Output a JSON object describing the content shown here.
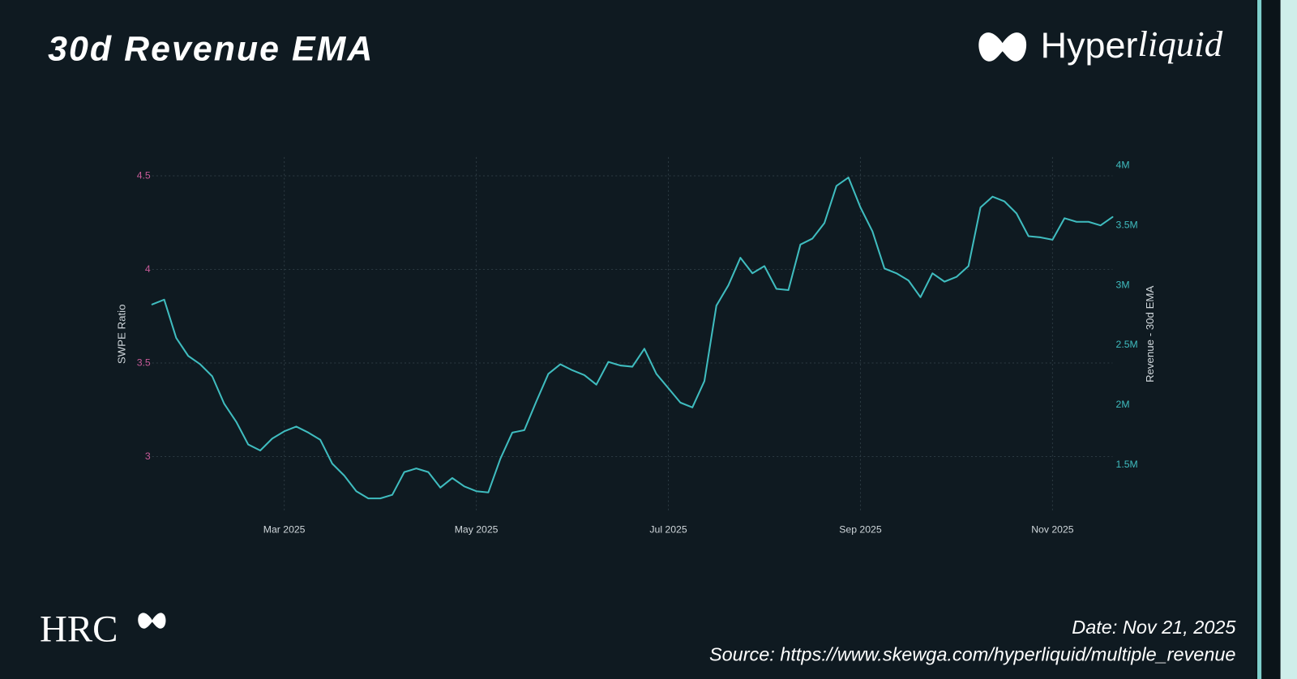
{
  "chart_data": {
    "type": "line",
    "title": "30d Revenue EMA",
    "ylabel": "SWPE Ratio",
    "y2label": "Revenue - 30d EMA",
    "categories": [
      null,
      null,
      null,
      null,
      null,
      null,
      null,
      null,
      null,
      null,
      null,
      "Mar 2025",
      null,
      null,
      null,
      null,
      null,
      null,
      null,
      null,
      null,
      null,
      null,
      null,
      null,
      null,
      null,
      "May 2025",
      null,
      null,
      null,
      null,
      null,
      null,
      null,
      null,
      null,
      null,
      null,
      null,
      null,
      null,
      null,
      "Jul 2025",
      null,
      null,
      null,
      null,
      null,
      null,
      null,
      null,
      null,
      null,
      null,
      null,
      null,
      null,
      null,
      "Sep 2025",
      null,
      null,
      null,
      null,
      null,
      null,
      null,
      null,
      null,
      null,
      null,
      null,
      null,
      null,
      null,
      "Nov 2025",
      null,
      null,
      null,
      null,
      null
    ],
    "series": [
      {
        "color": "#3fbcbf",
        "axis": "y2",
        "values": [
          2840000,
          2880000,
          2560000,
          2410000,
          2340000,
          2240000,
          2010000,
          1860000,
          1670000,
          1620000,
          1720000,
          1780000,
          1820000,
          1770000,
          1710000,
          1510000,
          1410000,
          1280000,
          1220000,
          1220000,
          1250000,
          1440000,
          1470000,
          1440000,
          1310000,
          1390000,
          1320000,
          1280000,
          1270000,
          1550000,
          1770000,
          1790000,
          2030000,
          2260000,
          2340000,
          2290000,
          2250000,
          2170000,
          2360000,
          2330000,
          2320000,
          2470000,
          2260000,
          2140000,
          2020000,
          1980000,
          2200000,
          2830000,
          3000000,
          3230000,
          3100000,
          3160000,
          2970000,
          2960000,
          3340000,
          3390000,
          3520000,
          3830000,
          3900000,
          3650000,
          3450000,
          3140000,
          3100000,
          3040000,
          2900000,
          3100000,
          3030000,
          3070000,
          3160000,
          3650000,
          3740000,
          3700000,
          3600000,
          3410000,
          3400000,
          3380000,
          3560000,
          3530000,
          3530000,
          3500000,
          3570000
        ]
      }
    ],
    "ylim": [
      2.7,
      4.6
    ],
    "yticks": [
      3,
      3.5,
      4,
      4.5
    ],
    "ytick_color": "#c65a98",
    "y2lim": [
      1100000,
      4070000
    ],
    "y2ticks": [
      {
        "value": 1500000,
        "label": "1.5M"
      },
      {
        "value": 2000000,
        "label": "2M"
      },
      {
        "value": 2500000,
        "label": "2.5M"
      },
      {
        "value": 3000000,
        "label": "3M"
      },
      {
        "value": 3500000,
        "label": "3.5M"
      },
      {
        "value": 4000000,
        "label": "4M"
      }
    ],
    "y2tick_color": "#3fbcbf",
    "grid": true
  },
  "brand": {
    "regular": "Hyper",
    "italic": "liquid"
  },
  "footer_brand": "HRC",
  "date": "Date: Nov 21, 2025",
  "source": "Source: https://www.skewga.com/hyperliquid/multiple_revenue"
}
